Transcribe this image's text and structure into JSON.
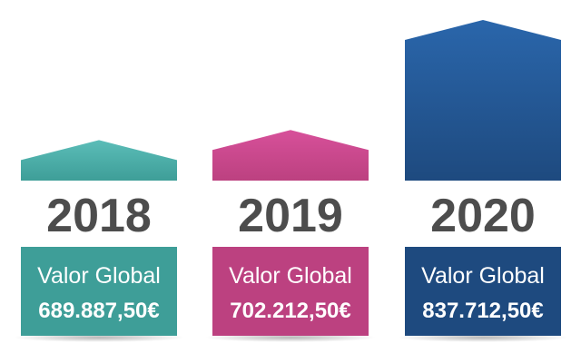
{
  "chart_data": {
    "type": "bar",
    "categories": [
      "2018",
      "2019",
      "2020"
    ],
    "values": [
      689887.5,
      702212.5,
      837712.5
    ],
    "value_labels": [
      "689.887,50€",
      "702.212,50€",
      "837.712,50€"
    ],
    "bar_caption": "Valor Global",
    "title": "",
    "xlabel": "",
    "ylabel": "",
    "colors": {
      "2018": {
        "top": "#5bbdb8",
        "bottom": "#3e9e98"
      },
      "2019": {
        "top": "#d7509a",
        "bottom": "#bc4180"
      },
      "2020": {
        "top": "#2a66ab",
        "bottom": "#1e4a7f"
      }
    },
    "grid": false,
    "legend": "none"
  }
}
